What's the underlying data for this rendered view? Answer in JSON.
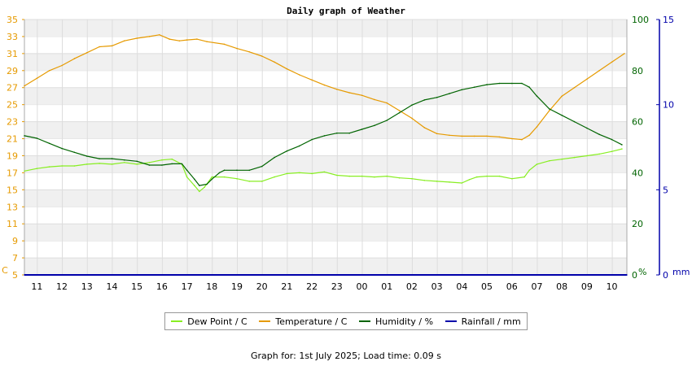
{
  "chart_data": {
    "type": "line",
    "title": "Daily graph of Weather",
    "x_ticks": [
      "11",
      "12",
      "13",
      "14",
      "15",
      "16",
      "17",
      "18",
      "19",
      "20",
      "21",
      "22",
      "23",
      "00",
      "01",
      "02",
      "03",
      "04",
      "05",
      "06",
      "07",
      "08",
      "09",
      "10"
    ],
    "axes": {
      "temperature": {
        "unit_label": "C",
        "range": [
          5,
          35
        ],
        "ticks": [
          "5",
          "7",
          "9",
          "11",
          "13",
          "15",
          "17",
          "19",
          "21",
          "23",
          "25",
          "27",
          "29",
          "31",
          "33",
          "35"
        ]
      },
      "humidity": {
        "unit_label": "%",
        "range": [
          0,
          100
        ],
        "ticks": [
          "0",
          "20",
          "40",
          "60",
          "80",
          "100"
        ]
      },
      "rainfall": {
        "unit_label": "mm",
        "range": [
          0,
          15
        ],
        "ticks": [
          "0",
          "5",
          "10",
          "15"
        ]
      }
    },
    "grid": true,
    "legend_position": "bottom",
    "series": [
      {
        "name": "Dew Point / C",
        "axis": "temperature",
        "color": "#88ee22",
        "points": [
          [
            10.5,
            17.2
          ],
          [
            11,
            17.5
          ],
          [
            11.5,
            17.7
          ],
          [
            12,
            17.8
          ],
          [
            12.5,
            17.8
          ],
          [
            13,
            18.0
          ],
          [
            13.5,
            18.1
          ],
          [
            14,
            18.0
          ],
          [
            14.5,
            18.2
          ],
          [
            15,
            18.0
          ],
          [
            15.5,
            18.2
          ],
          [
            16,
            18.5
          ],
          [
            16.4,
            18.6
          ],
          [
            16.8,
            18.0
          ],
          [
            17,
            16.5
          ],
          [
            17.3,
            15.5
          ],
          [
            17.5,
            14.8
          ],
          [
            17.7,
            15.3
          ],
          [
            18,
            16.5
          ],
          [
            18.5,
            16.5
          ],
          [
            19,
            16.3
          ],
          [
            19.5,
            16.0
          ],
          [
            20,
            16.0
          ],
          [
            20.5,
            16.5
          ],
          [
            21,
            16.9
          ],
          [
            21.5,
            17.0
          ],
          [
            22,
            16.9
          ],
          [
            22.5,
            17.1
          ],
          [
            23,
            16.7
          ],
          [
            23.5,
            16.6
          ],
          [
            24,
            16.6
          ],
          [
            24.5,
            16.5
          ],
          [
            25,
            16.6
          ],
          [
            25.5,
            16.4
          ],
          [
            26,
            16.3
          ],
          [
            26.5,
            16.1
          ],
          [
            27,
            16.0
          ],
          [
            27.5,
            15.9
          ],
          [
            28,
            15.8
          ],
          [
            28.3,
            16.2
          ],
          [
            28.6,
            16.5
          ],
          [
            29,
            16.6
          ],
          [
            29.5,
            16.6
          ],
          [
            30,
            16.3
          ],
          [
            30.5,
            16.5
          ],
          [
            30.7,
            17.3
          ],
          [
            31,
            18.0
          ],
          [
            31.5,
            18.4
          ],
          [
            32,
            18.6
          ],
          [
            32.5,
            18.8
          ],
          [
            33,
            19.0
          ],
          [
            33.5,
            19.2
          ],
          [
            34,
            19.5
          ],
          [
            34.4,
            19.8
          ]
        ]
      },
      {
        "name": "Temperature / C",
        "axis": "temperature",
        "color": "#e69a00",
        "points": [
          [
            10.5,
            27.2
          ],
          [
            11,
            28.1
          ],
          [
            11.5,
            29.0
          ],
          [
            12,
            29.6
          ],
          [
            12.5,
            30.4
          ],
          [
            13,
            31.1
          ],
          [
            13.5,
            31.8
          ],
          [
            14,
            31.9
          ],
          [
            14.5,
            32.5
          ],
          [
            15,
            32.8
          ],
          [
            15.5,
            33.0
          ],
          [
            15.9,
            33.2
          ],
          [
            16.3,
            32.7
          ],
          [
            16.7,
            32.5
          ],
          [
            17,
            32.6
          ],
          [
            17.4,
            32.7
          ],
          [
            17.8,
            32.4
          ],
          [
            18.5,
            32.1
          ],
          [
            19,
            31.6
          ],
          [
            19.5,
            31.2
          ],
          [
            20,
            30.7
          ],
          [
            20.5,
            30.0
          ],
          [
            21,
            29.2
          ],
          [
            21.5,
            28.5
          ],
          [
            22,
            27.9
          ],
          [
            22.5,
            27.3
          ],
          [
            23,
            26.8
          ],
          [
            23.5,
            26.4
          ],
          [
            24,
            26.1
          ],
          [
            24.5,
            25.6
          ],
          [
            25,
            25.2
          ],
          [
            25.5,
            24.3
          ],
          [
            26,
            23.4
          ],
          [
            26.5,
            22.3
          ],
          [
            27,
            21.6
          ],
          [
            27.5,
            21.4
          ],
          [
            28,
            21.3
          ],
          [
            28.5,
            21.3
          ],
          [
            29,
            21.3
          ],
          [
            29.5,
            21.2
          ],
          [
            30,
            21.0
          ],
          [
            30.4,
            20.9
          ],
          [
            30.7,
            21.4
          ],
          [
            31,
            22.4
          ],
          [
            31.5,
            24.3
          ],
          [
            32,
            26.0
          ],
          [
            32.5,
            27.0
          ],
          [
            33,
            28.0
          ],
          [
            33.5,
            29.0
          ],
          [
            34,
            30.0
          ],
          [
            34.5,
            31.0
          ]
        ]
      },
      {
        "name": "Humidity / %",
        "axis": "humidity",
        "color": "#006400",
        "points": [
          [
            10.5,
            54.5
          ],
          [
            11,
            53.5
          ],
          [
            11.5,
            51.5
          ],
          [
            12,
            49.5
          ],
          [
            12.5,
            48.0
          ],
          [
            13,
            46.5
          ],
          [
            13.5,
            45.5
          ],
          [
            14,
            45.5
          ],
          [
            14.5,
            45.0
          ],
          [
            15,
            44.5
          ],
          [
            15.5,
            43.0
          ],
          [
            16,
            43.0
          ],
          [
            16.4,
            43.5
          ],
          [
            16.8,
            43.5
          ],
          [
            17,
            41.0
          ],
          [
            17.3,
            37.5
          ],
          [
            17.5,
            35.0
          ],
          [
            17.8,
            35.5
          ],
          [
            18,
            37.5
          ],
          [
            18.3,
            40.0
          ],
          [
            18.5,
            41.0
          ],
          [
            19,
            41.0
          ],
          [
            19.5,
            41.0
          ],
          [
            20,
            42.5
          ],
          [
            20.5,
            46.0
          ],
          [
            21,
            48.5
          ],
          [
            21.5,
            50.5
          ],
          [
            22,
            53.0
          ],
          [
            22.5,
            54.5
          ],
          [
            23,
            55.5
          ],
          [
            23.5,
            55.5
          ],
          [
            24,
            57.0
          ],
          [
            24.5,
            58.5
          ],
          [
            25,
            60.5
          ],
          [
            25.5,
            63.5
          ],
          [
            26,
            66.5
          ],
          [
            26.5,
            68.5
          ],
          [
            27,
            69.5
          ],
          [
            27.5,
            71.0
          ],
          [
            28,
            72.5
          ],
          [
            28.5,
            73.5
          ],
          [
            29,
            74.5
          ],
          [
            29.5,
            75.0
          ],
          [
            30,
            75.0
          ],
          [
            30.4,
            75.0
          ],
          [
            30.7,
            73.5
          ],
          [
            31,
            70.0
          ],
          [
            31.5,
            65.0
          ],
          [
            32,
            62.5
          ],
          [
            32.5,
            60.0
          ],
          [
            33,
            57.5
          ],
          [
            33.5,
            55.0
          ],
          [
            34,
            53.0
          ],
          [
            34.4,
            51.0
          ]
        ]
      },
      {
        "name": "Rainfall / mm",
        "axis": "rainfall",
        "color": "#0000aa",
        "points": [
          [
            10.5,
            0
          ],
          [
            34.6,
            0
          ]
        ]
      }
    ]
  },
  "legend": [
    {
      "label": "Dew Point / C",
      "color": "#88ee22"
    },
    {
      "label": "Temperature / C",
      "color": "#e69a00"
    },
    {
      "label": "Humidity / %",
      "color": "#006400"
    },
    {
      "label": "Rainfall / mm",
      "color": "#0000aa"
    }
  ],
  "footer": "Graph for: 1st July 2025; Load time: 0.09 s"
}
